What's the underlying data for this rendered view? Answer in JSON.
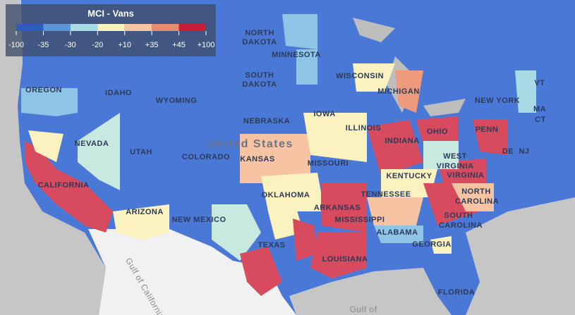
{
  "legend": {
    "title": "MCI - Vans",
    "colors": [
      "#2f5bbf",
      "#5c95d9",
      "#a9dbe6",
      "#fbf2bf",
      "#f6c4a2",
      "#e98a72",
      "#c41e3a"
    ],
    "ticks": [
      -100,
      -35,
      -30,
      -20,
      {
        "value": 10,
        "label": "+10"
      },
      {
        "value": 35,
        "label": "+35"
      },
      {
        "value": 45,
        "label": "+45"
      },
      {
        "value": 100,
        "label": "+100"
      }
    ]
  },
  "map": {
    "labels": [
      "NORTH",
      "DAKOTA",
      "MINNESOTA",
      "SOUTH",
      "DAKOTA",
      "WISCONSIN",
      "MICHIGAN",
      "OREGON",
      "IDAHO",
      "WYOMING",
      "IOWA",
      "NEBRASKA",
      "NEVADA",
      "UTAH",
      "COLORADO",
      "KANSAS",
      "MISSOURI",
      "ILLINOIS",
      "INDIANA",
      "OHIO",
      "PENN",
      "NEW YORK",
      "VT",
      "MA",
      "CT",
      "DE",
      "NJ",
      "WEST",
      "VIRGINIA",
      "VIRGINIA",
      "KENTUCKY",
      "TENNESSEE",
      "NORTH",
      "CAROLINA",
      "SOUTH",
      "CAROLINA",
      "GEORGIA",
      "ALABAMA",
      "MISSISSIPPI",
      "ARKANSAS",
      "LOUISIANA",
      "OKLAHOMA",
      "TEXAS",
      "NEW MEXICO",
      "ARIZONA",
      "CALIFORNIA",
      "FLORIDA",
      "United States",
      "Gulf of California",
      "Gulf of"
    ]
  }
}
